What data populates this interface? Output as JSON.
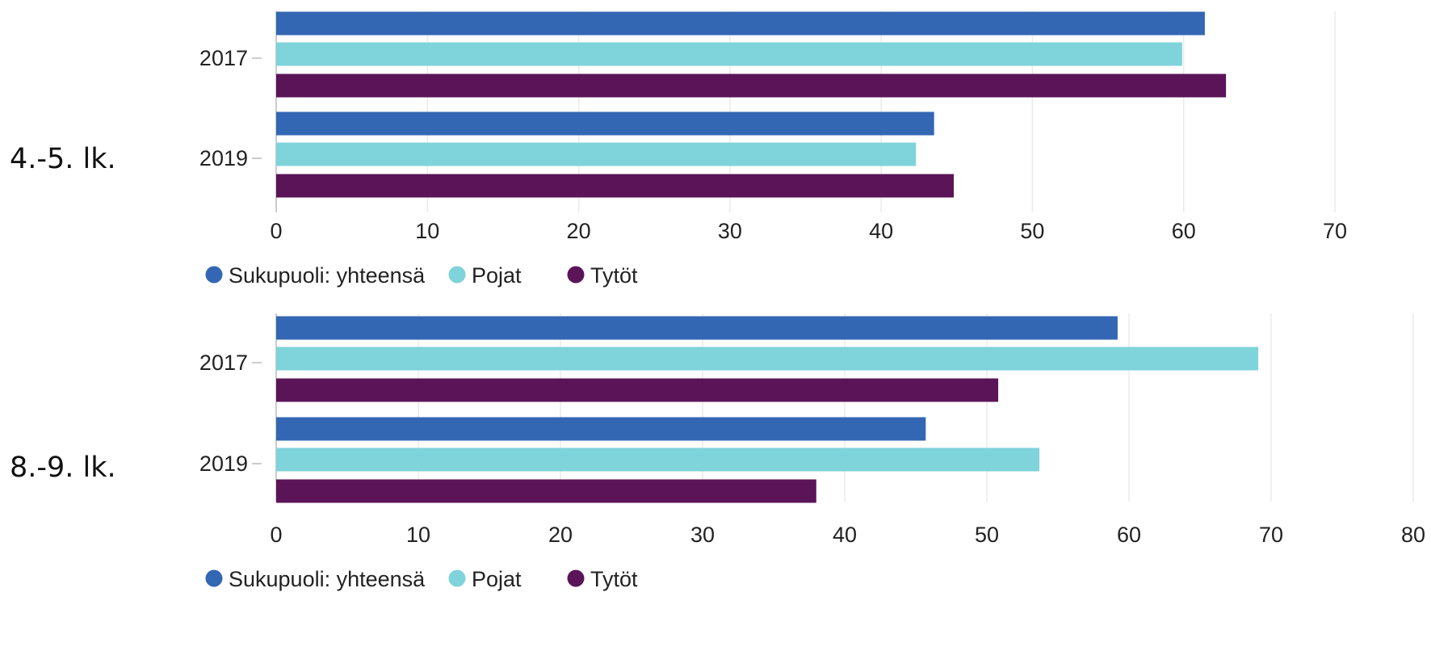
{
  "chart_data": [
    {
      "type": "bar",
      "orientation": "horizontal",
      "group_label": "4.-5. lk.",
      "categories": [
        "2017",
        "2019"
      ],
      "series": [
        {
          "name": "Sukupuoli: yhteensä",
          "color": "#3366b3",
          "values": [
            61.4,
            43.5
          ]
        },
        {
          "name": "Pojat",
          "color": "#7fd3da",
          "values": [
            59.9,
            42.3
          ]
        },
        {
          "name": "Tytöt",
          "color": "#5b1457",
          "values": [
            62.8,
            44.8
          ]
        }
      ],
      "xlim": [
        0,
        70
      ],
      "xticks": [
        "0",
        "10",
        "20",
        "30",
        "40",
        "50",
        "60",
        "70"
      ],
      "grid": true,
      "legend": "bottom-left"
    },
    {
      "type": "bar",
      "orientation": "horizontal",
      "group_label": "8.-9. lk.",
      "categories": [
        "2017",
        "2019"
      ],
      "series": [
        {
          "name": "Sukupuoli: yhteensä",
          "color": "#3366b3",
          "values": [
            59.2,
            45.7
          ]
        },
        {
          "name": "Pojat",
          "color": "#7fd3da",
          "values": [
            69.1,
            53.7
          ]
        },
        {
          "name": "Tytöt",
          "color": "#5b1457",
          "values": [
            50.8,
            38.0
          ]
        }
      ],
      "xlim": [
        0,
        80
      ],
      "xticks": [
        "0",
        "10",
        "20",
        "30",
        "40",
        "50",
        "60",
        "70",
        "80"
      ],
      "grid": true,
      "legend": "bottom-left"
    }
  ]
}
